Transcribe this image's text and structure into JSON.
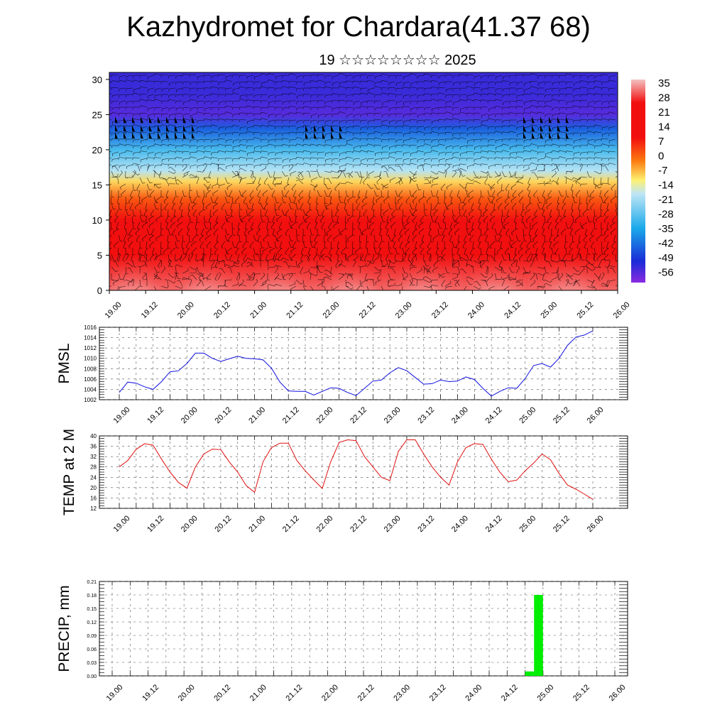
{
  "title": "Kazhydromet for Chardara(41.37 68)",
  "subtitle": "19 ☆☆☆☆☆☆☆☆ 2025",
  "chart_data": [
    {
      "type": "heatmap",
      "name": "cross-section",
      "xlabel": "",
      "ylabel": "",
      "x_ticks": [
        "19.00",
        "19.12",
        "20.00",
        "20.12",
        "21.00",
        "21.12",
        "22.00",
        "22.12",
        "23.00",
        "23.12",
        "24.00",
        "24.12",
        "25.00",
        "25.12",
        "26.00"
      ],
      "ylim": [
        0,
        31
      ],
      "y_ticks": [
        0,
        5,
        10,
        15,
        20,
        25,
        30
      ],
      "colorbar_labels": [
        "35",
        "28",
        "21",
        "14",
        "7",
        "0",
        "-7",
        "-14",
        "-21",
        "-28",
        "-35",
        "-42",
        "-49",
        "-56"
      ],
      "colorbar_range": [
        -63,
        42
      ],
      "bands_by_height": [
        {
          "height": 0,
          "value": 36
        },
        {
          "height": 5,
          "value": 25
        },
        {
          "height": 10,
          "value": 14
        },
        {
          "height": 13,
          "value": 4
        },
        {
          "height": 15.5,
          "value": -8
        },
        {
          "height": 17,
          "value": -18
        },
        {
          "height": 20,
          "value": -30
        },
        {
          "height": 23,
          "value": -45
        },
        {
          "height": 25,
          "value": -58
        },
        {
          "height": 28,
          "value": -55
        },
        {
          "height": 31,
          "value": -55
        }
      ],
      "colors": {
        "warm_light": "#f3c2c2",
        "warm": "#f20f0f",
        "orange": "#fb7a10",
        "yellow": "#fdf070",
        "light_blue": "#bfe6f5",
        "cyan": "#1aa9ea",
        "blue": "#1a2bd6",
        "violet": "#8a2be2"
      }
    },
    {
      "type": "line",
      "name": "pmsl",
      "ylabel": "PMSL",
      "xlabel": "",
      "x_ticks": [
        "19.00",
        "19.12",
        "20.00",
        "20.12",
        "21.00",
        "21.12",
        "22.00",
        "22.12",
        "23.00",
        "23.12",
        "24.00",
        "24.12",
        "25.00",
        "25.12",
        "26.00"
      ],
      "ylim": [
        1002,
        1016
      ],
      "y_ticks": [
        1002,
        1004,
        1006,
        1008,
        1010,
        1012,
        1014,
        1016
      ],
      "line_color": "#1010e0",
      "hours_step": 3,
      "values": [
        1003.4,
        1005.4,
        1005.2,
        1004.5,
        1004.0,
        1005.5,
        1007.4,
        1007.6,
        1009.0,
        1011.0,
        1011.0,
        1010.0,
        1009.4,
        1009.9,
        1010.4,
        1010.0,
        1009.9,
        1009.7,
        1008.1,
        1005.4,
        1003.7,
        1003.6,
        1003.6,
        1002.9,
        1003.6,
        1004.3,
        1004.2,
        1003.4,
        1002.8,
        1004.2,
        1005.6,
        1005.8,
        1007.2,
        1008.2,
        1007.6,
        1006.3,
        1005.0,
        1005.1,
        1005.8,
        1005.5,
        1005.6,
        1006.4,
        1005.9,
        1004.2,
        1002.7,
        1003.6,
        1004.3,
        1004.2,
        1006.1,
        1008.6,
        1009.0,
        1008.3,
        1010.0,
        1012.5,
        1014.1,
        1014.5,
        1015.3
      ]
    },
    {
      "type": "line",
      "name": "temperature",
      "ylabel": "TEMP at 2 M",
      "xlabel": "",
      "x_ticks": [
        "19.00",
        "19.12",
        "20.00",
        "20.12",
        "21.00",
        "21.12",
        "22.00",
        "22.12",
        "23.00",
        "23.12",
        "24.00",
        "24.12",
        "25.00",
        "25.12",
        "26.00"
      ],
      "ylim": [
        12,
        40
      ],
      "y_ticks": [
        12,
        16,
        20,
        24,
        28,
        32,
        36,
        40
      ],
      "line_color": "#e01010",
      "hours_step": 3,
      "values": [
        28.0,
        30.5,
        34.8,
        37.0,
        36.4,
        31.0,
        26.0,
        22.0,
        19.8,
        28.0,
        33.0,
        34.9,
        34.7,
        30.0,
        26.0,
        20.8,
        18.2,
        30.0,
        35.5,
        37.2,
        37.2,
        30.5,
        26.5,
        23.0,
        19.7,
        30.0,
        37.5,
        38.5,
        38.2,
        32.0,
        28.0,
        24.0,
        22.7,
        34.0,
        38.5,
        38.5,
        33.0,
        28.0,
        24.0,
        21.0,
        30.0,
        35.5,
        37.0,
        36.7,
        31.0,
        26.0,
        22.3,
        22.9,
        26.5,
        29.5,
        33.0,
        30.8,
        25.5,
        21.0,
        19.4,
        17.5,
        15.5
      ]
    },
    {
      "type": "bar",
      "name": "precipitation",
      "ylabel": "PRECIP, mm",
      "xlabel": "",
      "x_ticks": [
        "19.00",
        "19.12",
        "20.00",
        "20.12",
        "21.00",
        "21.12",
        "22.00",
        "22.12",
        "23.00",
        "23.12",
        "24.00",
        "24.12",
        "25.00",
        "25.12",
        "26.00"
      ],
      "ylim": [
        0,
        0.21
      ],
      "y_ticks": [
        "0.00",
        "0.03",
        "0.06",
        "0.09",
        "0.12",
        "0.15",
        "0.18",
        "0.21"
      ],
      "bar_color": "#00ee00",
      "bars": [
        {
          "hour": 141,
          "value": 0.01
        },
        {
          "hour": 144,
          "value": 0.18
        }
      ]
    }
  ]
}
